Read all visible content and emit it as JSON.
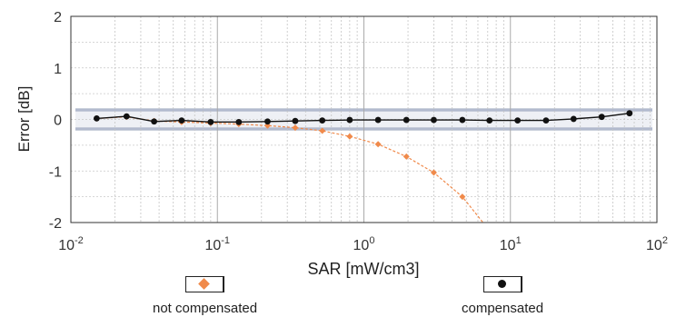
{
  "chart_data": {
    "type": "line",
    "xlabel": "SAR [mW/cm3]",
    "ylabel": "Error [dB]",
    "x_scale": "log",
    "xlim": [
      0.01,
      100
    ],
    "ylim": [
      -2,
      2
    ],
    "x_ticks": [
      {
        "base": "10",
        "exp": "-2"
      },
      {
        "base": "10",
        "exp": "-1"
      },
      {
        "base": "10",
        "exp": "0"
      },
      {
        "base": "10",
        "exp": "1"
      },
      {
        "base": "10",
        "exp": "2"
      }
    ],
    "y_ticks": [
      "2",
      "1",
      "0",
      "-1",
      "-2"
    ],
    "grid": true,
    "uncertainty_band": [
      -0.2,
      0.2
    ],
    "series": [
      {
        "name": "not compensated",
        "color": "#f08a4b",
        "marker": "diamond",
        "x": [
          0.015,
          0.024,
          0.037,
          0.057,
          0.09,
          0.14,
          0.22,
          0.34,
          0.52,
          0.8,
          1.25,
          1.95,
          3.0,
          4.7,
          6.5
        ],
        "y": [
          0.02,
          0.05,
          -0.03,
          -0.05,
          -0.07,
          -0.09,
          -0.12,
          -0.16,
          -0.22,
          -0.33,
          -0.48,
          -0.72,
          -1.03,
          -1.5,
          -2.0
        ]
      },
      {
        "name": "compensated",
        "color": "#111111",
        "marker": "circle",
        "x": [
          0.015,
          0.024,
          0.037,
          0.057,
          0.09,
          0.14,
          0.22,
          0.34,
          0.52,
          0.8,
          1.25,
          1.95,
          3.0,
          4.7,
          7.2,
          11.2,
          17.5,
          27,
          42,
          65
        ],
        "y": [
          0.02,
          0.06,
          -0.04,
          -0.02,
          -0.05,
          -0.05,
          -0.04,
          -0.03,
          -0.02,
          -0.01,
          -0.01,
          -0.01,
          -0.01,
          -0.01,
          -0.02,
          -0.02,
          -0.02,
          0.01,
          0.05,
          0.12
        ]
      }
    ]
  },
  "legend": {
    "not_compensated_label": "not compensated",
    "compensated_label": "compensated"
  }
}
